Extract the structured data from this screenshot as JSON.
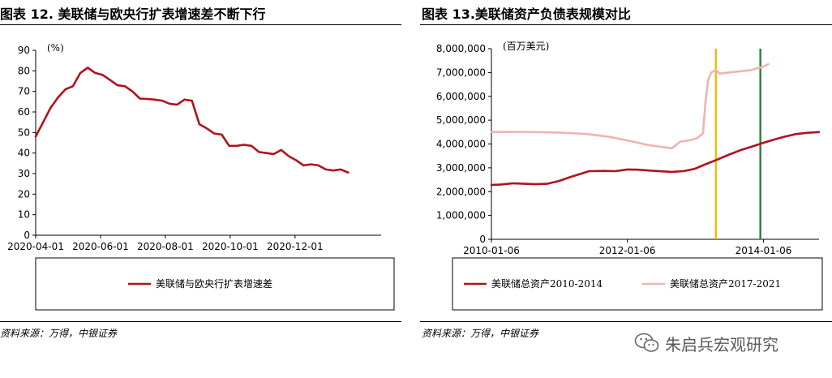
{
  "left": {
    "title": "图表 12. 美联储与欧央行扩表增速差不断下行",
    "source": "资料来源：万得，中银证券"
  },
  "right": {
    "title": "图表 13.美联储资产负债表规模对比",
    "source": "资料来源：万得，中银证券"
  },
  "watermark": {
    "text": "朱启兵宏观研究",
    "icon": "wechat-icon"
  },
  "colors": {
    "dark_red": "#b0121f",
    "pink": "#efb3b3",
    "orange": "#f5b80a",
    "green": "#2e7d32"
  },
  "chart_data": [
    {
      "type": "line",
      "unit_label": "(%)",
      "ylim": [
        0,
        90
      ],
      "yticks": [
        "0",
        "10",
        "20",
        "30",
        "40",
        "50",
        "60",
        "70",
        "80",
        "90"
      ],
      "xlim": [
        "2020-04-01",
        "2021-02-20"
      ],
      "xticks": [
        "2020-04-01",
        "2020-06-01",
        "2020-08-01",
        "2020-10-01",
        "2020-12-01"
      ],
      "legend_position": "bottom-box",
      "series": [
        {
          "name": "美联储与欧央行扩表增速差",
          "color": "#b0121f",
          "points": [
            [
              "2020-04-01",
              48
            ],
            [
              "2020-04-08",
              55
            ],
            [
              "2020-04-15",
              62
            ],
            [
              "2020-04-22",
              67
            ],
            [
              "2020-04-29",
              71
            ],
            [
              "2020-05-06",
              72.5
            ],
            [
              "2020-05-13",
              79
            ],
            [
              "2020-05-20",
              81.5
            ],
            [
              "2020-05-27",
              79
            ],
            [
              "2020-06-03",
              78
            ],
            [
              "2020-06-10",
              75.5
            ],
            [
              "2020-06-17",
              73
            ],
            [
              "2020-06-24",
              72.5
            ],
            [
              "2020-07-01",
              70
            ],
            [
              "2020-07-08",
              66.5
            ],
            [
              "2020-07-15",
              66.3
            ],
            [
              "2020-07-22",
              66
            ],
            [
              "2020-07-29",
              65.5
            ],
            [
              "2020-08-05",
              64
            ],
            [
              "2020-08-12",
              63.5
            ],
            [
              "2020-08-19",
              66
            ],
            [
              "2020-08-26",
              65.5
            ],
            [
              "2020-09-02",
              54
            ],
            [
              "2020-09-09",
              52
            ],
            [
              "2020-09-16",
              49.5
            ],
            [
              "2020-09-23",
              49
            ],
            [
              "2020-09-30",
              43.5
            ],
            [
              "2020-10-07",
              43.5
            ],
            [
              "2020-10-14",
              44
            ],
            [
              "2020-10-21",
              43.5
            ],
            [
              "2020-10-28",
              40.5
            ],
            [
              "2020-11-04",
              40
            ],
            [
              "2020-11-11",
              39.5
            ],
            [
              "2020-11-18",
              41.5
            ],
            [
              "2020-11-25",
              38.5
            ],
            [
              "2020-12-02",
              36.5
            ],
            [
              "2020-12-09",
              34
            ],
            [
              "2020-12-16",
              34.5
            ],
            [
              "2020-12-23",
              34
            ],
            [
              "2020-12-30",
              32
            ],
            [
              "2021-01-06",
              31.5
            ],
            [
              "2021-01-13",
              32
            ],
            [
              "2021-01-20",
              30.5
            ]
          ]
        }
      ]
    },
    {
      "type": "line",
      "unit_label": "(百万美元)",
      "ylim": [
        0,
        8000000
      ],
      "yticks": [
        "0",
        "1,000,000",
        "2,000,000",
        "3,000,000",
        "4,000,000",
        "5,000,000",
        "6,000,000",
        "7,000,000",
        "8,000,000"
      ],
      "xlim": [
        "2010-01-06",
        "2014-10-31"
      ],
      "xticks": [
        "2010-01-06",
        "2012-01-06",
        "2014-01-06"
      ],
      "vlines": [
        {
          "x": "2013-04-25",
          "color": "#f5b80a"
        },
        {
          "x": "2013-12-20",
          "color": "#2e7d32"
        }
      ],
      "legend_position": "bottom-box",
      "series": [
        {
          "name": "美联储总资产2010-2014",
          "color": "#b0121f",
          "points": [
            [
              "2010-01-06",
              2280000
            ],
            [
              "2010-03-01",
              2300000
            ],
            [
              "2010-05-01",
              2350000
            ],
            [
              "2010-07-01",
              2330000
            ],
            [
              "2010-09-01",
              2310000
            ],
            [
              "2010-11-01",
              2330000
            ],
            [
              "2011-01-06",
              2450000
            ],
            [
              "2011-03-01",
              2600000
            ],
            [
              "2011-05-01",
              2750000
            ],
            [
              "2011-06-15",
              2860000
            ],
            [
              "2011-09-01",
              2870000
            ],
            [
              "2011-11-01",
              2860000
            ],
            [
              "2012-01-06",
              2930000
            ],
            [
              "2012-03-01",
              2920000
            ],
            [
              "2012-06-01",
              2870000
            ],
            [
              "2012-09-01",
              2830000
            ],
            [
              "2012-11-01",
              2860000
            ],
            [
              "2013-01-02",
              2960000
            ],
            [
              "2013-03-01",
              3150000
            ],
            [
              "2013-05-01",
              3340000
            ],
            [
              "2013-07-01",
              3540000
            ],
            [
              "2013-09-01",
              3730000
            ],
            [
              "2013-11-01",
              3880000
            ],
            [
              "2014-01-06",
              4050000
            ],
            [
              "2014-03-01",
              4180000
            ],
            [
              "2014-05-01",
              4310000
            ],
            [
              "2014-07-01",
              4420000
            ],
            [
              "2014-09-01",
              4470000
            ],
            [
              "2014-10-31",
              4500000
            ]
          ]
        },
        {
          "name": "美联储总资产2017-2021",
          "color": "#efb3b3",
          "points": [
            [
              "2010-01-06",
              4500000
            ],
            [
              "2010-06-01",
              4510000
            ],
            [
              "2011-01-06",
              4480000
            ],
            [
              "2011-06-01",
              4420000
            ],
            [
              "2011-10-01",
              4300000
            ],
            [
              "2012-01-06",
              4150000
            ],
            [
              "2012-05-01",
              3950000
            ],
            [
              "2012-09-01",
              3820000
            ],
            [
              "2012-10-15",
              4100000
            ],
            [
              "2012-12-15",
              4170000
            ],
            [
              "2013-01-15",
              4250000
            ],
            [
              "2013-02-15",
              4450000
            ],
            [
              "2013-03-01",
              5800000
            ],
            [
              "2013-03-15",
              6700000
            ],
            [
              "2013-04-01",
              7000000
            ],
            [
              "2013-04-25",
              7100000
            ],
            [
              "2013-05-15",
              6950000
            ],
            [
              "2013-07-01",
              7000000
            ],
            [
              "2013-09-01",
              7050000
            ],
            [
              "2013-11-01",
              7100000
            ],
            [
              "2014-01-06",
              7250000
            ],
            [
              "2014-02-01",
              7350000
            ]
          ]
        }
      ]
    }
  ]
}
